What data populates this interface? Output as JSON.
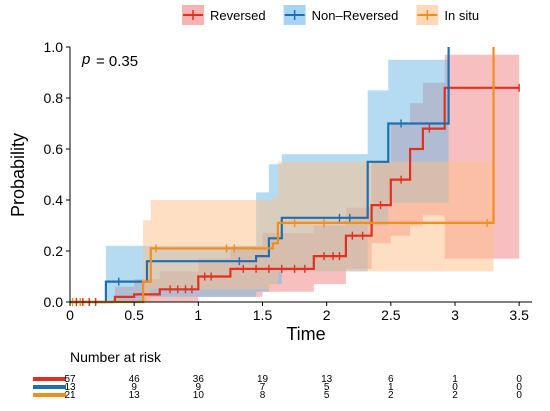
{
  "chart_data": {
    "type": "step",
    "xlabel": "Time",
    "ylabel": "Probability",
    "xlim": [
      0,
      3.6
    ],
    "ylim": [
      0,
      1.0
    ],
    "xticks": [
      0,
      0.5,
      1,
      1.5,
      2,
      2.5,
      3,
      3.5
    ],
    "xtick_labels": [
      "0",
      "0.5",
      "1",
      "1.5",
      "2",
      "2.5",
      "3",
      "3.5"
    ],
    "yticks": [
      0,
      0.2,
      0.4,
      0.6,
      0.8,
      1.0
    ],
    "ytick_labels": [
      "0.0",
      "0.2",
      "0.4",
      "0.6",
      "0.8",
      "1.0"
    ],
    "legend_position": "top",
    "annotation": {
      "p_label": "p",
      "p_value": "= 0.35"
    },
    "series": [
      {
        "name": "Reversed",
        "color": "#e0301e",
        "band_color": "#f08080",
        "steps": [
          [
            0,
            0
          ],
          [
            0.35,
            0.02
          ],
          [
            0.5,
            0.03
          ],
          [
            0.7,
            0.05
          ],
          [
            1.0,
            0.1
          ],
          [
            1.25,
            0.13
          ],
          [
            1.9,
            0.18
          ],
          [
            2.15,
            0.26
          ],
          [
            2.35,
            0.38
          ],
          [
            2.5,
            0.48
          ],
          [
            2.65,
            0.6
          ],
          [
            2.75,
            0.68
          ],
          [
            2.92,
            0.84
          ],
          [
            3.5,
            0.84
          ]
        ],
        "lower": [
          [
            0,
            0
          ],
          [
            0.35,
            0
          ],
          [
            0.7,
            0
          ],
          [
            1.0,
            0.02
          ],
          [
            1.5,
            0.04
          ],
          [
            1.9,
            0.07
          ],
          [
            2.15,
            0.13
          ],
          [
            2.35,
            0.23
          ],
          [
            2.5,
            0.26
          ],
          [
            2.65,
            0.3
          ],
          [
            2.75,
            0.34
          ],
          [
            2.92,
            0.17
          ],
          [
            3.5,
            0.17
          ]
        ],
        "upper": [
          [
            0,
            0
          ],
          [
            0.35,
            0.06
          ],
          [
            0.5,
            0.09
          ],
          [
            0.7,
            0.12
          ],
          [
            1.0,
            0.17
          ],
          [
            1.25,
            0.22
          ],
          [
            1.5,
            0.27
          ],
          [
            1.9,
            0.3
          ],
          [
            2.15,
            0.37
          ],
          [
            2.35,
            0.55
          ],
          [
            2.5,
            0.7
          ],
          [
            2.65,
            0.78
          ],
          [
            2.75,
            0.86
          ],
          [
            2.92,
            0.97
          ],
          [
            3.5,
            0.97
          ]
        ],
        "censor": [
          [
            0.05,
            0.0
          ],
          [
            0.1,
            0.0
          ],
          [
            0.15,
            0.0
          ],
          [
            0.2,
            0.0
          ],
          [
            0.78,
            0.05
          ],
          [
            0.84,
            0.05
          ],
          [
            0.9,
            0.05
          ],
          [
            0.95,
            0.05
          ],
          [
            1.05,
            0.1
          ],
          [
            1.1,
            0.1
          ],
          [
            1.35,
            0.13
          ],
          [
            1.45,
            0.13
          ],
          [
            1.55,
            0.13
          ],
          [
            1.65,
            0.13
          ],
          [
            1.75,
            0.13
          ],
          [
            1.83,
            0.13
          ],
          [
            1.98,
            0.18
          ],
          [
            2.05,
            0.18
          ],
          [
            2.1,
            0.18
          ],
          [
            2.2,
            0.26
          ],
          [
            2.28,
            0.26
          ],
          [
            2.42,
            0.38
          ],
          [
            2.58,
            0.48
          ],
          [
            2.8,
            0.68
          ],
          [
            3.5,
            0.84
          ]
        ]
      },
      {
        "name": "Non–Reversed",
        "color": "#1f6fb0",
        "band_color": "#6cb8e6",
        "steps": [
          [
            0,
            0
          ],
          [
            0.28,
            0.08
          ],
          [
            0.6,
            0.16
          ],
          [
            1.45,
            0.18
          ],
          [
            1.55,
            0.25
          ],
          [
            1.65,
            0.33
          ],
          [
            2.32,
            0.55
          ],
          [
            2.48,
            0.7
          ],
          [
            2.95,
            1.0
          ]
        ],
        "lower": [
          [
            0,
            0
          ],
          [
            0.28,
            0
          ],
          [
            0.6,
            0.02
          ],
          [
            1.45,
            0.04
          ],
          [
            1.55,
            0.07
          ],
          [
            1.65,
            0.12
          ],
          [
            2.32,
            0.3
          ],
          [
            2.48,
            0.39
          ],
          [
            2.95,
            0.39
          ]
        ],
        "upper": [
          [
            0,
            0
          ],
          [
            0.28,
            0.22
          ],
          [
            0.6,
            0.22
          ],
          [
            1.45,
            0.43
          ],
          [
            1.55,
            0.54
          ],
          [
            1.65,
            0.58
          ],
          [
            2.32,
            0.83
          ],
          [
            2.48,
            0.95
          ],
          [
            2.95,
            0.95
          ]
        ],
        "censor": [
          [
            0.38,
            0.08
          ],
          [
            1.32,
            0.16
          ],
          [
            2.1,
            0.33
          ],
          [
            2.18,
            0.33
          ],
          [
            2.58,
            0.7
          ]
        ]
      },
      {
        "name": "In situ",
        "color": "#f28e1c",
        "band_color": "#fdbf8a",
        "steps": [
          [
            0,
            0
          ],
          [
            0.57,
            0.08
          ],
          [
            0.63,
            0.21
          ],
          [
            1.58,
            0.23
          ],
          [
            1.62,
            0.31
          ],
          [
            3.3,
            1.0
          ]
        ],
        "lower": [
          [
            0,
            0
          ],
          [
            0.57,
            0
          ],
          [
            0.63,
            0.05
          ],
          [
            1.58,
            0.07
          ],
          [
            1.62,
            0.12
          ],
          [
            3.3,
            0.12
          ]
        ],
        "upper": [
          [
            0,
            0
          ],
          [
            0.57,
            0.32
          ],
          [
            0.63,
            0.4
          ],
          [
            1.58,
            0.41
          ],
          [
            1.62,
            0.55
          ],
          [
            3.3,
            0.55
          ]
        ],
        "censor": [
          [
            0.02,
            0.0
          ],
          [
            0.08,
            0.0
          ],
          [
            0.67,
            0.21
          ],
          [
            1.22,
            0.21
          ],
          [
            1.28,
            0.21
          ],
          [
            1.75,
            0.31
          ],
          [
            1.98,
            0.31
          ],
          [
            3.25,
            0.31
          ]
        ]
      }
    ],
    "risk_table": {
      "title": "Number at risk",
      "times": [
        0,
        0.5,
        1,
        1.5,
        2,
        2.5,
        3,
        3.5
      ],
      "rows": [
        {
          "color": "#e0301e",
          "values": [
            "57",
            "46",
            "36",
            "19",
            "13",
            "6",
            "1",
            "0"
          ]
        },
        {
          "color": "#1f6fb0",
          "values": [
            "13",
            "9",
            "9",
            "7",
            "5",
            "1",
            "0",
            "0"
          ]
        },
        {
          "color": "#f28e1c",
          "values": [
            "21",
            "13",
            "10",
            "8",
            "5",
            "2",
            "2",
            "0"
          ]
        }
      ]
    }
  }
}
